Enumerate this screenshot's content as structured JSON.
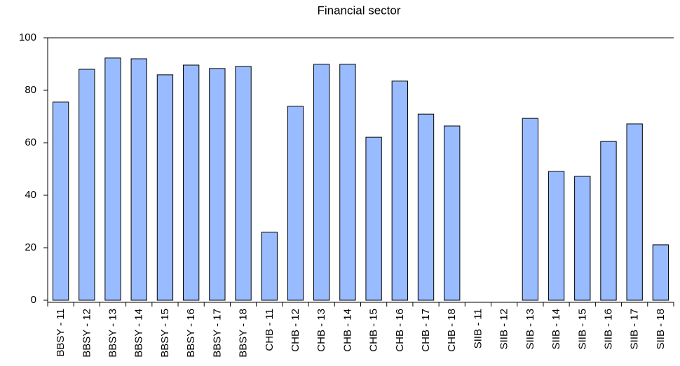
{
  "chart_data": {
    "type": "bar",
    "title": "Financial sector",
    "categories": [
      "BBSY - 11",
      "BBSY - 12",
      "BBSY - 13",
      "BBSY - 14",
      "BBSY - 15",
      "BBSY - 16",
      "BBSY - 17",
      "BBSY - 18",
      "CHB - 11",
      "CHB - 12",
      "CHB - 13",
      "CHB - 14",
      "CHB - 15",
      "CHB - 16",
      "CHB - 17",
      "CHB - 18",
      "SIIB - 11",
      "SIIB - 12",
      "SIIB - 13",
      "SIIB - 14",
      "SIIB - 15",
      "SIIB - 16",
      "SIIB - 17",
      "SIIB - 18"
    ],
    "values": [
      75.5,
      88,
      92.3,
      92,
      85.9,
      89.6,
      88.3,
      89.1,
      25.9,
      73.9,
      89.9,
      89.9,
      62.1,
      83.5,
      70.9,
      66.4,
      null,
      null,
      69.3,
      49.1,
      47.2,
      60.5,
      67.2,
      21.1
    ],
    "color": "#99bbff",
    "ylim": [
      0,
      100
    ],
    "yticks": [
      0,
      20,
      40,
      60,
      80,
      100
    ],
    "grid": false
  }
}
